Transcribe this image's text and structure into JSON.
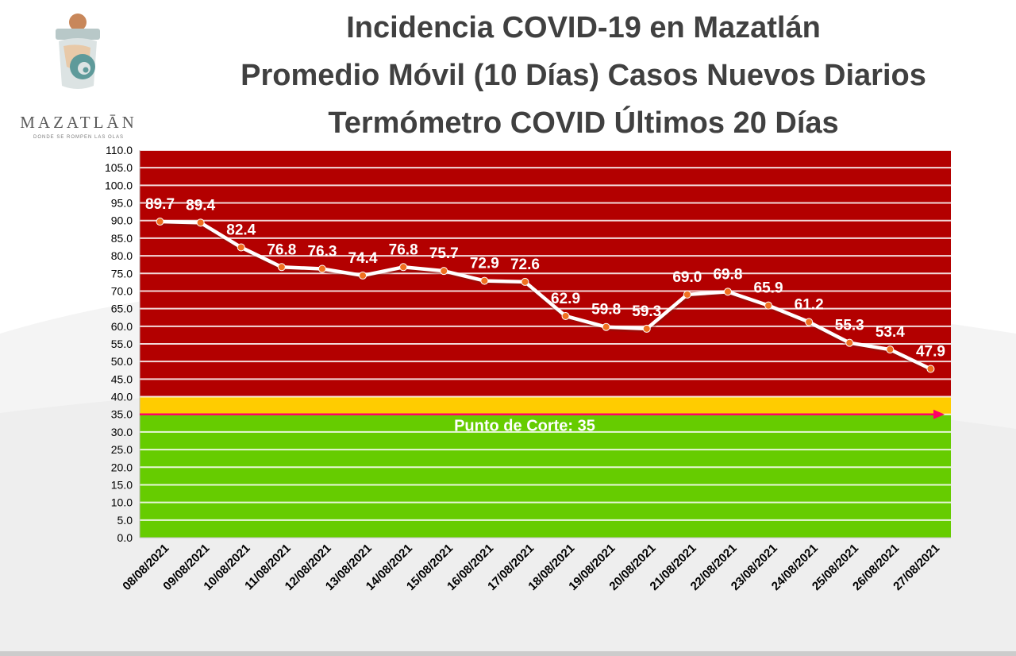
{
  "logo": {
    "wordmark": "MAZATLĀN",
    "tagline": "DONDE SE ROMPEN LAS OLAS"
  },
  "chart_data": {
    "type": "line",
    "title": "Incidencia COVID-19 en Mazatlán",
    "subtitle": "Promedio Móvil (10 Días) Casos Nuevos Diarios",
    "subtitle2": "Termómetro COVID Últimos 20 Días",
    "categories": [
      "08/08/2021",
      "09/08/2021",
      "10/08/2021",
      "11/08/2021",
      "12/08/2021",
      "13/08/2021",
      "14/08/2021",
      "15/08/2021",
      "16/08/2021",
      "17/08/2021",
      "18/08/2021",
      "19/08/2021",
      "20/08/2021",
      "21/08/2021",
      "22/08/2021",
      "23/08/2021",
      "24/08/2021",
      "25/08/2021",
      "26/08/2021",
      "27/08/2021"
    ],
    "values": [
      89.7,
      89.4,
      82.4,
      76.8,
      76.3,
      74.4,
      76.8,
      75.7,
      72.9,
      72.6,
      62.9,
      59.8,
      59.3,
      69.0,
      69.8,
      65.9,
      61.2,
      55.3,
      53.4,
      47.9
    ],
    "value_labels": [
      "89.7",
      "89.4",
      "82.4",
      "76.8",
      "76.3",
      "74.4",
      "76.8",
      "75.7",
      "72.9",
      "72.6",
      "62.9",
      "59.8",
      "59.3",
      "69.0",
      "69.8",
      "65.9",
      "61.2",
      "55.3",
      "53.4",
      "47.9"
    ],
    "ylim": [
      0,
      110
    ],
    "yticks": [
      "0.0",
      "5.0",
      "10.0",
      "15.0",
      "20.0",
      "25.0",
      "30.0",
      "35.0",
      "40.0",
      "45.0",
      "50.0",
      "55.0",
      "60.0",
      "65.0",
      "70.0",
      "75.0",
      "80.0",
      "85.0",
      "90.0",
      "95.0",
      "100.0",
      "105.0",
      "110.0"
    ],
    "ytick_step": 5,
    "grid": true,
    "bands": [
      {
        "from": 0,
        "to": 35,
        "color": "#66cc00"
      },
      {
        "from": 35,
        "to": 40,
        "color": "#ffcc00"
      },
      {
        "from": 40,
        "to": 110,
        "color": "#b30000"
      }
    ],
    "threshold": {
      "value": 35,
      "label": "Punto de Corte: 35",
      "color": "#ff0066"
    },
    "line_color": "#ffffff",
    "marker_color": "#f07020"
  }
}
